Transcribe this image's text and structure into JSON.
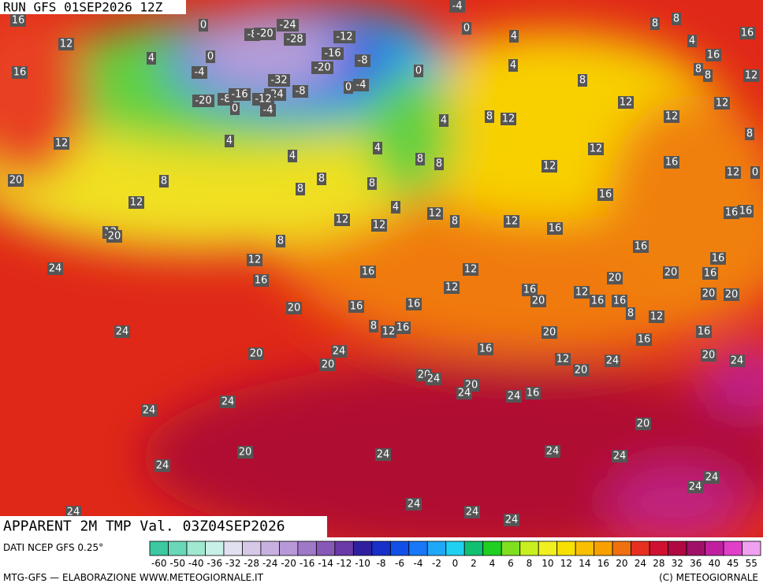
{
  "header": {
    "run": "RUN GFS 01SEP2026 12Z",
    "title": "APPARENT 2M TMP Val. 03Z04SEP2026"
  },
  "map_labels": [
    16,
    12,
    16,
    4,
    0,
    0,
    -4,
    -8,
    -20,
    -24,
    -28,
    -12,
    -16,
    -8,
    -20,
    -32,
    -24,
    -8,
    -12,
    -4,
    -20,
    -8,
    -16,
    0,
    0,
    -4,
    0,
    -4,
    0,
    4,
    4,
    8,
    8,
    8,
    4,
    16,
    16,
    8,
    8,
    12,
    12,
    8,
    12,
    12,
    12,
    8,
    4,
    12,
    4,
    4,
    4,
    8,
    8,
    12,
    12,
    16,
    12,
    0,
    20,
    8,
    8,
    8,
    8,
    16,
    12,
    12,
    4,
    12,
    8,
    12,
    16,
    16,
    16,
    12,
    12,
    20,
    8,
    12,
    16,
    16,
    16,
    24,
    16,
    12,
    16,
    20,
    20,
    20,
    16,
    16,
    12,
    16,
    20,
    12,
    16,
    16,
    8,
    12,
    20,
    20,
    24,
    8,
    12,
    16,
    20,
    16,
    16,
    20,
    24,
    20,
    16,
    12,
    20,
    24,
    20,
    24,
    20,
    24,
    20,
    24,
    24,
    16,
    24,
    24,
    20,
    20,
    24,
    24,
    24,
    24,
    24,
    24,
    24,
    24,
    24,
    24
  ],
  "legend": {
    "source": "DATI NCEP GFS 0.25°",
    "ticks": [
      -60,
      -50,
      -40,
      -36,
      -32,
      -28,
      -24,
      -20,
      -16,
      -14,
      -12,
      -10,
      -8,
      -6,
      -4,
      -2,
      0,
      2,
      4,
      6,
      8,
      10,
      12,
      14,
      16,
      20,
      24,
      28,
      32,
      36,
      40,
      45,
      55
    ],
    "colors": [
      "#3cc8a0",
      "#6ad8b8",
      "#a0e8d0",
      "#c8f0e8",
      "#e0e0f0",
      "#d8c8e8",
      "#c8b0e0",
      "#b898d8",
      "#a078c8",
      "#8858b8",
      "#6a3aa8",
      "#3020a0",
      "#1830c8",
      "#1050e8",
      "#1878f8",
      "#20a8f8",
      "#20d0f0",
      "#10c070",
      "#20d020",
      "#80e020",
      "#c8f020",
      "#f0f020",
      "#f8e000",
      "#f8c000",
      "#f8a000",
      "#f07010",
      "#e83020",
      "#d01030",
      "#b00840",
      "#a01068",
      "#c020a0",
      "#e040c8",
      "#f0a0f0"
    ]
  },
  "footer": {
    "credit": "MTG-GFS — ELABORAZIONE WWW.METEOGIORNALE.IT",
    "copyright": "(C) METEOGIORNALE"
  }
}
